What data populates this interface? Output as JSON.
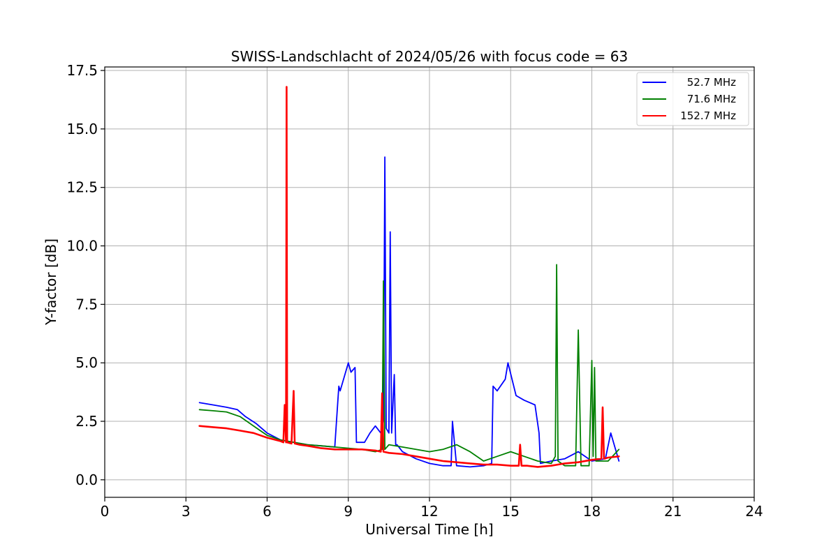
{
  "chart_data": {
    "type": "line",
    "title": "SWISS-Landschlacht of 2024/05/26 with focus code = 63",
    "xlabel": "Universal Time [h]",
    "ylabel": "Y-factor [dB]",
    "xlim": [
      0,
      24
    ],
    "ylim": [
      -0.75,
      17.65
    ],
    "xticks": [
      0,
      3,
      6,
      9,
      12,
      15,
      18,
      21,
      24
    ],
    "xtick_labels": [
      "0",
      "3",
      "6",
      "9",
      "12",
      "15",
      "18",
      "21",
      "24"
    ],
    "yticks": [
      0.0,
      2.5,
      5.0,
      7.5,
      10.0,
      12.5,
      15.0,
      17.5
    ],
    "ytick_labels": [
      "0.0",
      "2.5",
      "5.0",
      "7.5",
      "10.0",
      "12.5",
      "15.0",
      "17.5"
    ],
    "grid": true,
    "legend_position": "top-right",
    "series": [
      {
        "name": "52.7 MHz",
        "color": "#0000ff",
        "x": [
          3.5,
          4.0,
          4.5,
          4.9,
          5.2,
          5.6,
          6.0,
          6.5,
          7.0,
          7.5,
          8.0,
          8.5,
          8.65,
          8.7,
          8.9,
          9.0,
          9.1,
          9.25,
          9.3,
          9.6,
          9.8,
          10.0,
          10.2,
          10.3,
          10.35,
          10.4,
          10.5,
          10.55,
          10.6,
          10.7,
          10.75,
          10.8,
          11.0,
          11.5,
          12.0,
          12.5,
          12.8,
          12.85,
          13.0,
          13.5,
          14.0,
          14.3,
          14.35,
          14.5,
          14.8,
          14.9,
          15.2,
          15.5,
          15.9,
          16.05,
          16.1,
          16.5,
          17.0,
          17.5,
          18.0,
          18.5,
          18.7,
          19.0
        ],
        "y": [
          3.3,
          3.2,
          3.1,
          3.0,
          2.7,
          2.4,
          2.0,
          1.7,
          1.6,
          1.5,
          1.45,
          1.4,
          4.0,
          3.8,
          4.6,
          5.0,
          4.6,
          4.8,
          1.6,
          1.6,
          2.0,
          2.3,
          2.0,
          2.5,
          13.8,
          2.2,
          2.0,
          10.6,
          2.0,
          4.5,
          1.5,
          1.5,
          1.2,
          0.9,
          0.7,
          0.6,
          0.6,
          2.5,
          0.6,
          0.55,
          0.6,
          0.7,
          4.0,
          3.8,
          4.3,
          5.0,
          3.6,
          3.4,
          3.2,
          2.0,
          0.7,
          0.8,
          0.9,
          1.2,
          0.8,
          0.9,
          2.0,
          0.8
        ]
      },
      {
        "name": "71.6 MHz",
        "color": "#008000",
        "x": [
          3.5,
          4.0,
          4.5,
          5.0,
          5.5,
          6.0,
          6.5,
          7.0,
          7.5,
          8.0,
          8.5,
          9.0,
          9.5,
          10.0,
          10.25,
          10.3,
          10.35,
          10.5,
          11.0,
          11.5,
          12.0,
          12.5,
          13.0,
          13.5,
          14.0,
          14.5,
          15.0,
          15.5,
          16.0,
          16.5,
          16.65,
          16.7,
          16.75,
          17.0,
          17.4,
          17.5,
          17.6,
          17.9,
          18.0,
          18.05,
          18.1,
          18.15,
          18.3,
          18.6,
          19.0
        ],
        "y": [
          3.0,
          2.95,
          2.9,
          2.7,
          2.3,
          1.9,
          1.7,
          1.6,
          1.5,
          1.45,
          1.4,
          1.35,
          1.3,
          1.2,
          1.3,
          8.5,
          1.3,
          1.5,
          1.4,
          1.3,
          1.2,
          1.3,
          1.5,
          1.2,
          0.8,
          1.0,
          1.2,
          1.0,
          0.8,
          0.7,
          1.0,
          9.2,
          0.8,
          0.6,
          0.6,
          6.4,
          0.6,
          0.6,
          5.1,
          1.0,
          4.8,
          0.8,
          0.8,
          0.8,
          1.3
        ]
      },
      {
        "name": "152.7 MHz",
        "color": "#ff0000",
        "x": [
          3.5,
          4.0,
          4.5,
          5.0,
          5.5,
          6.0,
          6.5,
          6.6,
          6.65,
          6.7,
          6.72,
          6.74,
          6.9,
          6.98,
          7.02,
          7.2,
          7.5,
          8.0,
          8.5,
          9.0,
          9.5,
          10.0,
          10.2,
          10.25,
          10.3,
          10.5,
          11.0,
          11.5,
          12.0,
          12.5,
          13.0,
          13.5,
          14.0,
          14.5,
          15.0,
          15.3,
          15.35,
          15.4,
          15.6,
          16.0,
          16.5,
          17.0,
          17.5,
          18.0,
          18.35,
          18.4,
          18.45,
          18.6,
          19.0
        ],
        "y": [
          2.3,
          2.25,
          2.2,
          2.1,
          2.0,
          1.8,
          1.65,
          1.6,
          3.2,
          1.6,
          16.8,
          1.6,
          1.55,
          3.8,
          1.55,
          1.5,
          1.45,
          1.35,
          1.3,
          1.3,
          1.3,
          1.25,
          1.2,
          3.7,
          1.2,
          1.15,
          1.1,
          1.0,
          0.9,
          0.8,
          0.75,
          0.7,
          0.65,
          0.65,
          0.6,
          0.6,
          1.5,
          0.6,
          0.6,
          0.55,
          0.6,
          0.7,
          0.75,
          0.85,
          0.9,
          3.1,
          0.9,
          0.95,
          1.0
        ]
      }
    ]
  }
}
